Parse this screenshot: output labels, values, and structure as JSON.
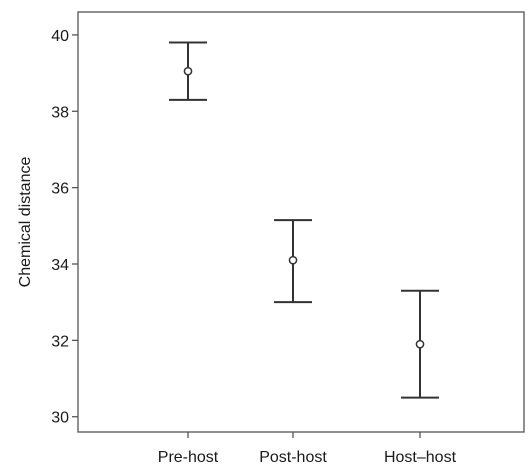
{
  "chart_data": {
    "type": "scatter",
    "subtype": "error-bar",
    "title": "",
    "xlabel": "",
    "ylabel": "Chemical distance",
    "ylim": [
      29.6,
      40.6
    ],
    "yticks": [
      30,
      32,
      34,
      36,
      38,
      40
    ],
    "ytick_labels": [
      "30",
      "32",
      "34",
      "36",
      "38",
      "40"
    ],
    "categories": [
      "Pre-host",
      "Post-host",
      "Host–host"
    ],
    "series": [
      {
        "means": [
          39.05,
          34.1,
          31.9
        ],
        "lower": [
          38.3,
          33.0,
          30.5
        ],
        "upper": [
          39.8,
          35.15,
          33.3
        ]
      }
    ],
    "grid": false,
    "legend": "none",
    "colors": {
      "marks": "#333333",
      "frame": "#555555",
      "text": "#1a1a1a"
    }
  }
}
